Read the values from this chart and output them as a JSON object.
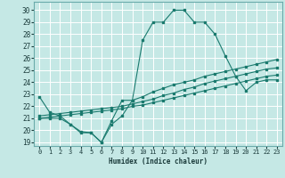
{
  "xlabel": "Humidex (Indice chaleur)",
  "xlim": [
    -0.5,
    23.5
  ],
  "ylim": [
    18.7,
    30.7
  ],
  "yticks": [
    19,
    20,
    21,
    22,
    23,
    24,
    25,
    26,
    27,
    28,
    29,
    30
  ],
  "xticks": [
    0,
    1,
    2,
    3,
    4,
    5,
    6,
    7,
    8,
    9,
    10,
    11,
    12,
    13,
    14,
    15,
    16,
    17,
    18,
    19,
    20,
    21,
    22,
    23
  ],
  "bg_color": "#c5e8e5",
  "grid_color": "#ffffff",
  "line_color": "#1a7a6e",
  "lines": [
    {
      "x": [
        0,
        1,
        2,
        3,
        4,
        5,
        6,
        7,
        8,
        9,
        10,
        11,
        12,
        13,
        14,
        15,
        16,
        17,
        18,
        19,
        20,
        21,
        22,
        23
      ],
      "y": [
        22.8,
        21.5,
        21.2,
        20.5,
        19.8,
        19.8,
        19.0,
        20.8,
        22.5,
        22.5,
        27.5,
        29.0,
        29.0,
        30.0,
        30.0,
        29.0,
        29.0,
        28.0,
        26.2,
        24.5,
        23.3,
        24.0,
        24.2,
        24.2
      ]
    },
    {
      "x": [
        0,
        1,
        2,
        3,
        4,
        5,
        6,
        7,
        8,
        9,
        10,
        11,
        12,
        13,
        14,
        15,
        16,
        17,
        18,
        19,
        20,
        21,
        22,
        23
      ],
      "y": [
        21.2,
        21.3,
        21.4,
        21.5,
        21.6,
        21.7,
        21.8,
        21.9,
        22.0,
        22.2,
        22.4,
        22.6,
        22.9,
        23.1,
        23.4,
        23.6,
        23.9,
        24.1,
        24.3,
        24.5,
        24.7,
        24.9,
        25.1,
        25.2
      ]
    },
    {
      "x": [
        0,
        1,
        2,
        3,
        4,
        5,
        6,
        7,
        8,
        9,
        10,
        11,
        12,
        13,
        14,
        15,
        16,
        17,
        18,
        19,
        20,
        21,
        22,
        23
      ],
      "y": [
        21.0,
        21.1,
        21.2,
        21.3,
        21.4,
        21.5,
        21.6,
        21.7,
        21.8,
        22.0,
        22.1,
        22.3,
        22.5,
        22.7,
        22.9,
        23.1,
        23.3,
        23.5,
        23.7,
        23.9,
        24.1,
        24.3,
        24.5,
        24.6
      ]
    },
    {
      "x": [
        0,
        1,
        2,
        3,
        4,
        5,
        6,
        7,
        8,
        9,
        10,
        11,
        12,
        13,
        14,
        15,
        16,
        17,
        18,
        19,
        20,
        21,
        22,
        23
      ],
      "y": [
        21.0,
        21.0,
        21.0,
        20.5,
        19.9,
        19.8,
        19.0,
        20.5,
        21.2,
        22.5,
        22.8,
        23.2,
        23.5,
        23.8,
        24.0,
        24.2,
        24.5,
        24.7,
        24.9,
        25.1,
        25.3,
        25.5,
        25.7,
        25.9
      ]
    }
  ]
}
